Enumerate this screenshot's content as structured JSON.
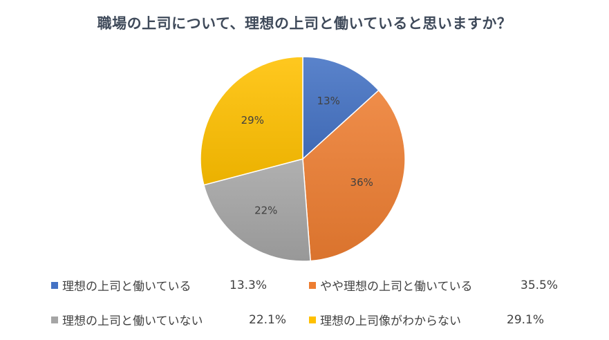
{
  "chart_data": {
    "type": "pie",
    "title": "職場の上司について、理想の上司と働いていると思いますか？",
    "slices": [
      {
        "name": "理想の上司と働いている",
        "value": 13.3,
        "label": "13%",
        "legend_value": "13.3%",
        "color": "#4472c4"
      },
      {
        "name": "やや理想の上司と働いている",
        "value": 35.5,
        "label": "36%",
        "legend_value": "35.5%",
        "color": "#ed7d31"
      },
      {
        "name": "理想の上司と働いていない",
        "value": 22.1,
        "label": "22%",
        "legend_value": "22.1%",
        "color": "#a5a5a5"
      },
      {
        "name": "理想の上司像がわからない",
        "value": 29.1,
        "label": "29%",
        "legend_value": "29.1%",
        "color": "#ffc000"
      }
    ],
    "legend_position": "bottom"
  }
}
